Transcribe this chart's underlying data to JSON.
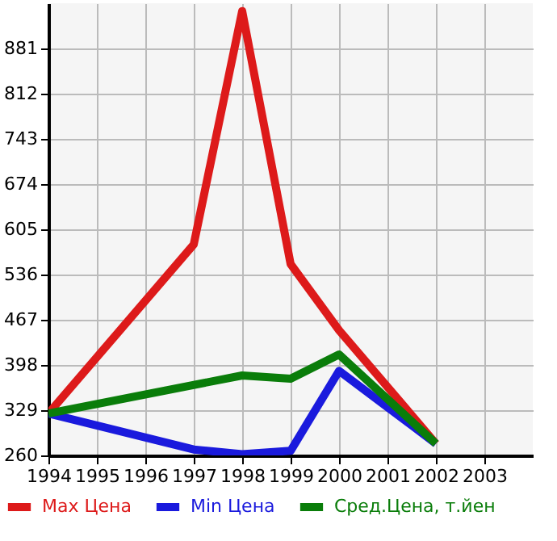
{
  "chart_data": {
    "type": "line",
    "xlim": [
      1994,
      2004
    ],
    "xticks": [
      1994,
      1995,
      1996,
      1997,
      1998,
      1999,
      2000,
      2001,
      2002,
      2003
    ],
    "ylim": [
      260,
      950
    ],
    "yticks": [
      260,
      329,
      398,
      467,
      536,
      605,
      674,
      743,
      812,
      881
    ],
    "grid": true,
    "legend": "bottom",
    "marker": "none",
    "line_style": "solid",
    "series": [
      {
        "name": "Max Цена",
        "color": "#dd1a1a",
        "x": [
          1994,
          1997,
          1998,
          1999,
          2000,
          2002
        ],
        "values": [
          324,
          582,
          938,
          552,
          451,
          278
        ]
      },
      {
        "name": "Min Цена",
        "color": "#1a1add",
        "x": [
          1994,
          1997,
          1998,
          1999,
          2000,
          2002
        ],
        "values": [
          324,
          269,
          262,
          267,
          389,
          278
        ]
      },
      {
        "name": "Сред.Цена, т.йен",
        "color": "#0a7d0a",
        "x": [
          1994,
          1998,
          1999,
          2000,
          2002
        ],
        "values": [
          324,
          382,
          377,
          414,
          278
        ]
      }
    ]
  }
}
